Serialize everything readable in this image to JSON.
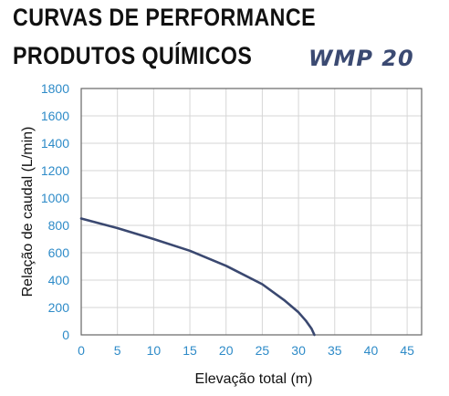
{
  "header": {
    "title_line1": "CURVAS DE PERFORMANCE",
    "title_line2": "PRODUTOS QUÍMICOS",
    "model": "WMP 20"
  },
  "chart_data": {
    "type": "line",
    "title": "CURVAS DE PERFORMANCE PRODUTOS QUÍMICOS",
    "xlabel": "Elevação total (m)",
    "ylabel": "Relação de caudal (L/min)",
    "xlim": [
      0,
      47
    ],
    "ylim": [
      0,
      1800
    ],
    "xticks": [
      0,
      5,
      10,
      15,
      20,
      25,
      30,
      35,
      40,
      45
    ],
    "yticks": [
      0,
      200,
      400,
      600,
      800,
      1000,
      1200,
      1400,
      1600,
      1800
    ],
    "grid": true,
    "series": [
      {
        "name": "",
        "x": [
          0,
          5,
          10,
          15,
          20,
          25,
          28,
          30,
          31,
          31.8,
          32.2
        ],
        "y": [
          850,
          780,
          700,
          615,
          505,
          370,
          255,
          165,
          105,
          45,
          0
        ]
      }
    ],
    "colors": {
      "line": "#3a4870",
      "axis_ticks": "#2e8bc8",
      "grid": "#d6d6d6",
      "frame": "#666666"
    }
  }
}
